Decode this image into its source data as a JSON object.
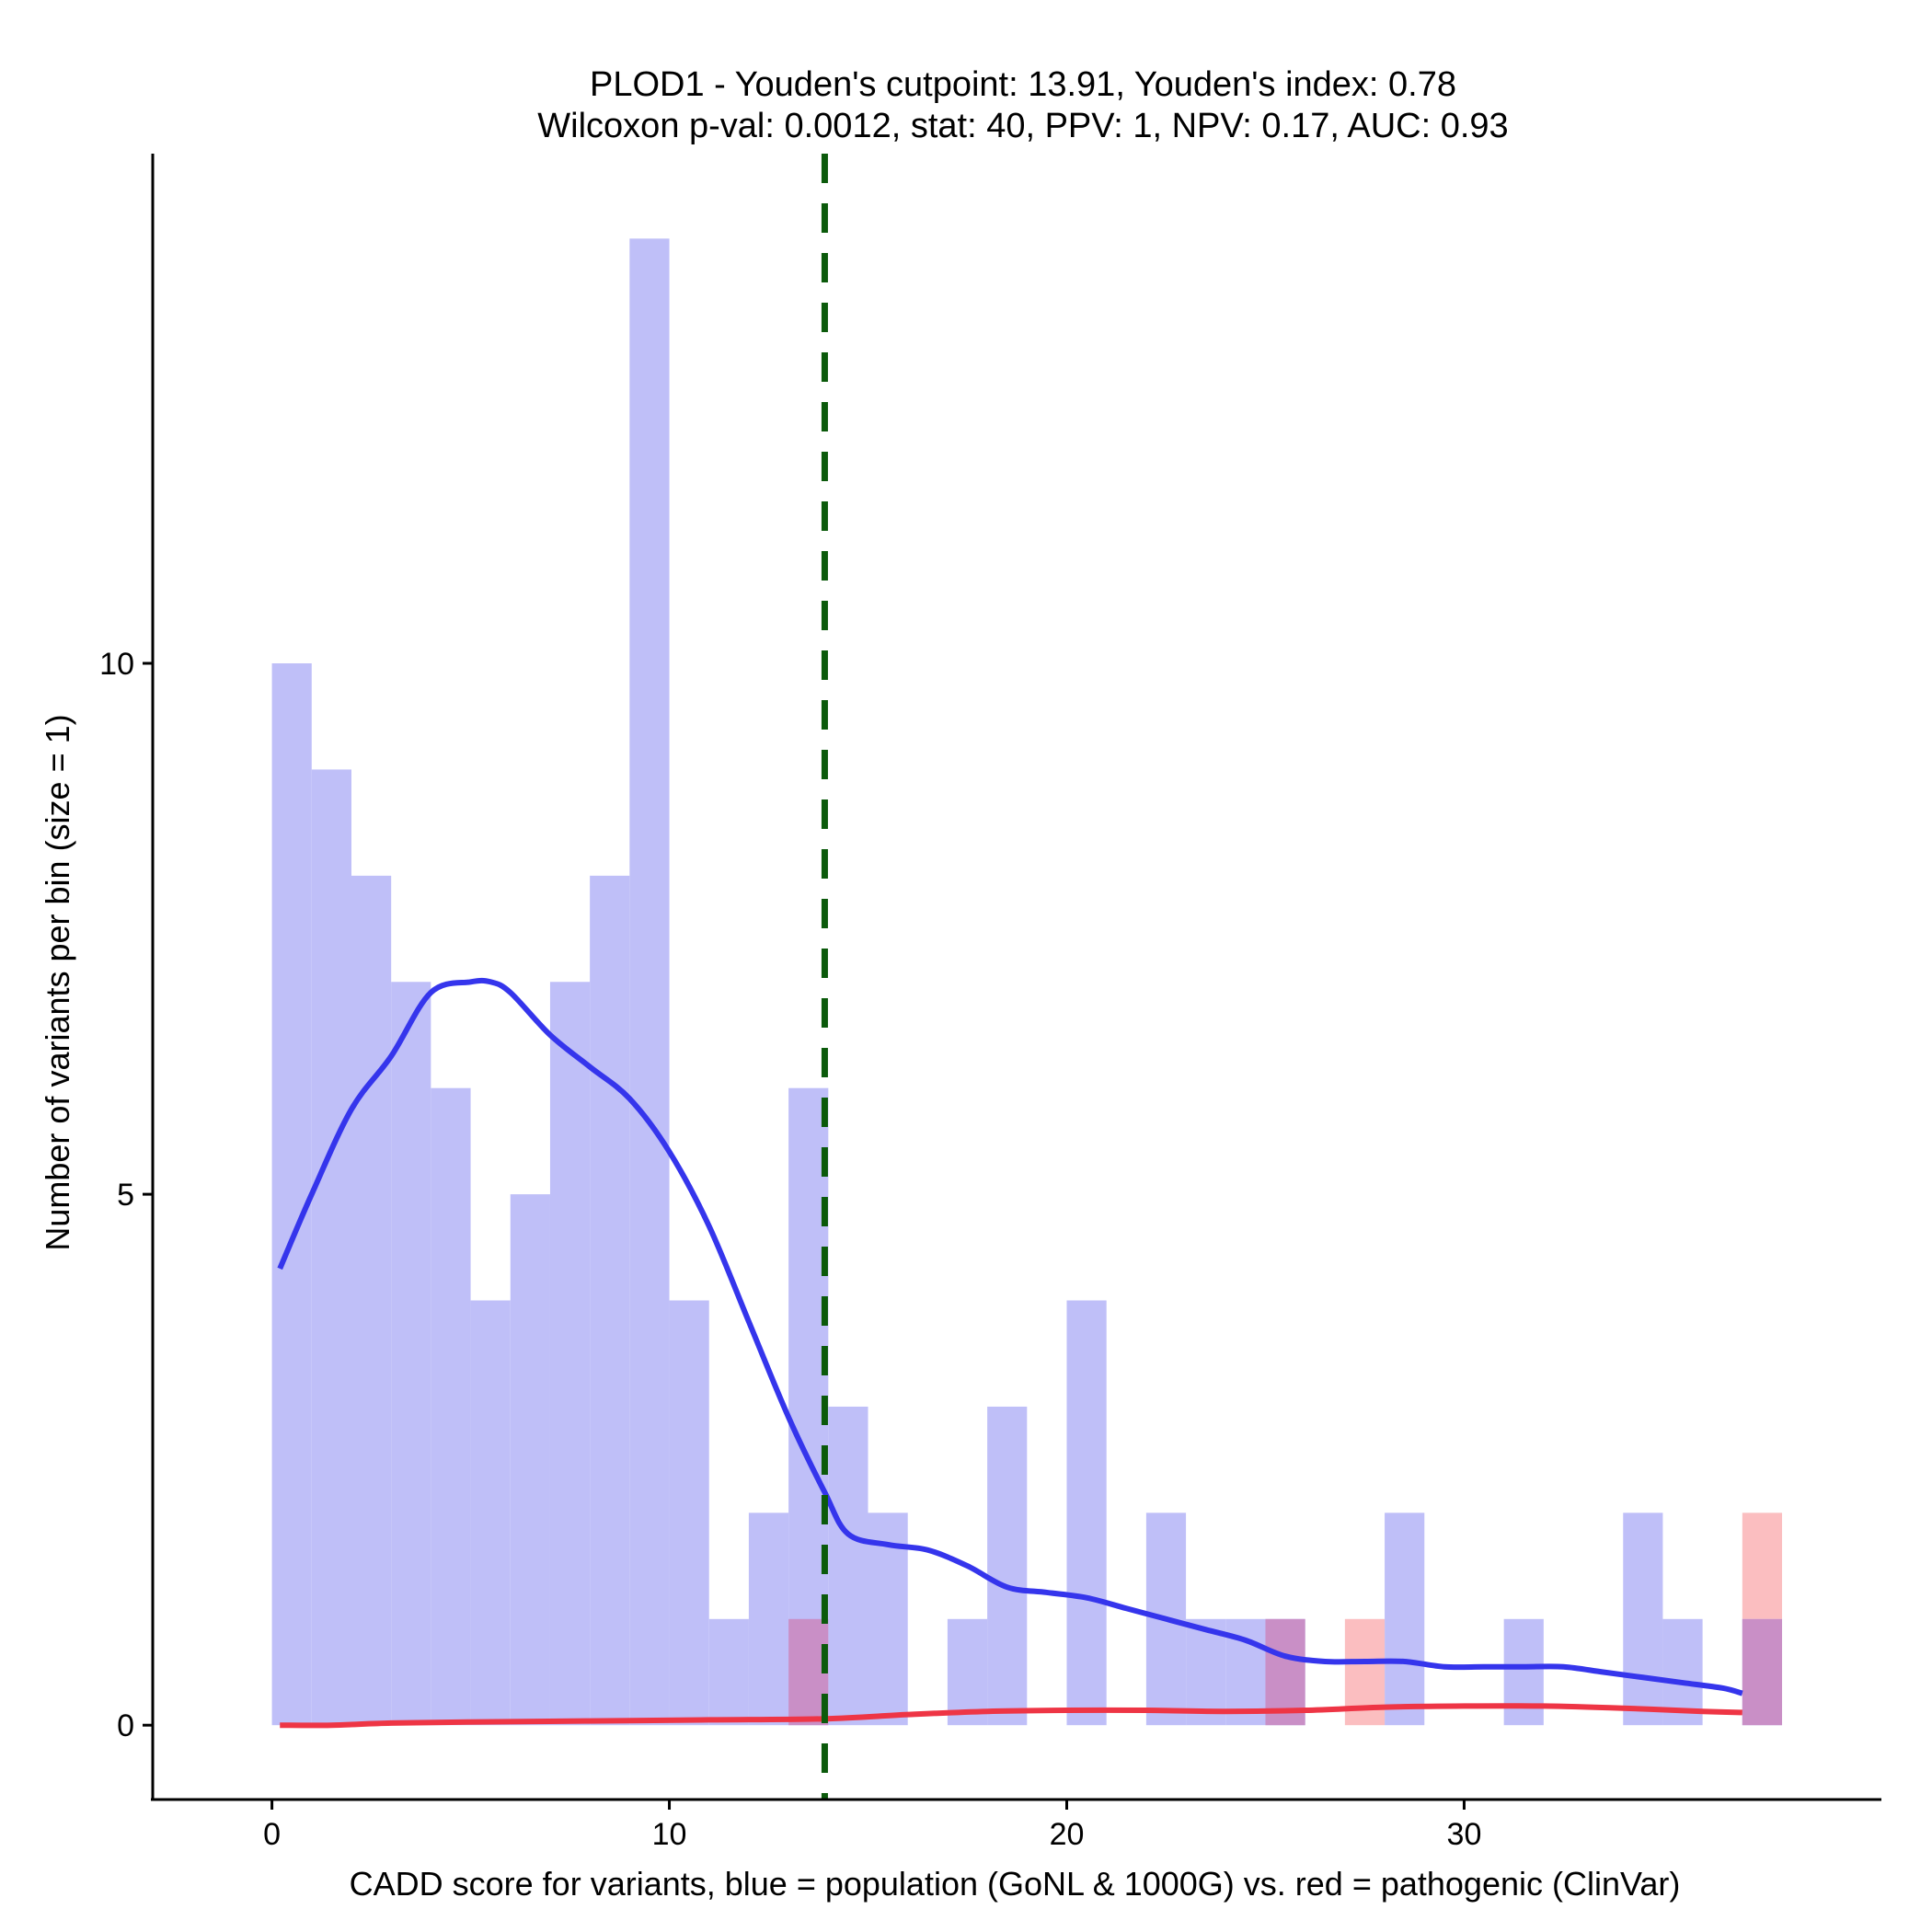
{
  "chart_data": {
    "type": "histogram",
    "title": "PLOD1 - Youden's cutpoint: 13.91, Youden's index: 0.78",
    "subtitle": "Wilcoxon p-val: 0.0012, stat: 40, PPV: 1, NPV: 0.17, AUC: 0.93",
    "xlabel": "CADD score for variants, blue = population (GoNL & 1000G) vs. red = pathogenic (ClinVar)",
    "ylabel": "Number of variants per bin (size = 1)",
    "xlim": [
      -3,
      40.5
    ],
    "ylim": [
      -0.7,
      14.8
    ],
    "x_ticks": [
      0,
      10,
      20,
      30
    ],
    "x_tick_labels": [
      "0",
      "10",
      "20",
      "30"
    ],
    "y_ticks": [
      0,
      5,
      10
    ],
    "y_tick_labels": [
      "0",
      "5",
      "10"
    ],
    "bin_size": 1,
    "cutpoint": 13.91,
    "colors": {
      "population_bar": "#bfbff8",
      "pathogenic_bar": "#fbbec0",
      "overlap_bar": "#c98fc6",
      "population_line": "#3535ec",
      "pathogenic_line": "#ee3545",
      "cutpoint_line": "#0b5a0b"
    },
    "series": [
      {
        "name": "population (GoNL & 1000G)",
        "bins": [
          {
            "x": 0,
            "count": 10
          },
          {
            "x": 1,
            "count": 9
          },
          {
            "x": 2,
            "count": 8
          },
          {
            "x": 3,
            "count": 7
          },
          {
            "x": 4,
            "count": 6
          },
          {
            "x": 5,
            "count": 4
          },
          {
            "x": 6,
            "count": 5
          },
          {
            "x": 7,
            "count": 7
          },
          {
            "x": 8,
            "count": 8
          },
          {
            "x": 9,
            "count": 14
          },
          {
            "x": 10,
            "count": 4
          },
          {
            "x": 11,
            "count": 1
          },
          {
            "x": 12,
            "count": 2
          },
          {
            "x": 13,
            "count": 6
          },
          {
            "x": 14,
            "count": 3
          },
          {
            "x": 15,
            "count": 2
          },
          {
            "x": 17,
            "count": 1
          },
          {
            "x": 18,
            "count": 3
          },
          {
            "x": 20,
            "count": 4
          },
          {
            "x": 22,
            "count": 2
          },
          {
            "x": 23,
            "count": 1
          },
          {
            "x": 24,
            "count": 1
          },
          {
            "x": 25,
            "count": 1
          },
          {
            "x": 28,
            "count": 2
          },
          {
            "x": 31,
            "count": 1
          },
          {
            "x": 34,
            "count": 2
          },
          {
            "x": 35,
            "count": 1
          },
          {
            "x": 37,
            "count": 1
          }
        ]
      },
      {
        "name": "pathogenic (ClinVar)",
        "bins": [
          {
            "x": 13,
            "count": 1
          },
          {
            "x": 25,
            "count": 1
          },
          {
            "x": 27,
            "count": 1
          },
          {
            "x": 37,
            "count": 2
          }
        ]
      }
    ],
    "density_lines": [
      {
        "name": "population (GoNL & 1000G)",
        "x": [
          0.2,
          1,
          2,
          3,
          4,
          5,
          5.5,
          6,
          7,
          8,
          9,
          10,
          11,
          12,
          13,
          13.9,
          14.5,
          15.5,
          16.5,
          17.5,
          18.5,
          19.5,
          20.5,
          21.5,
          22.5,
          23.5,
          24.5,
          25.5,
          26.5,
          27.5,
          28.5,
          29.5,
          30.5,
          31.5,
          32.5,
          33.5,
          34.5,
          35.5,
          36.5,
          37
        ],
        "y": [
          4.3,
          5.0,
          5.8,
          6.3,
          6.9,
          7.0,
          7.0,
          6.9,
          6.5,
          6.2,
          5.9,
          5.4,
          4.7,
          3.8,
          2.9,
          2.2,
          1.8,
          1.7,
          1.65,
          1.5,
          1.3,
          1.25,
          1.2,
          1.1,
          1.0,
          0.9,
          0.8,
          0.65,
          0.6,
          0.6,
          0.6,
          0.55,
          0.55,
          0.55,
          0.55,
          0.5,
          0.45,
          0.4,
          0.35,
          0.3
        ]
      },
      {
        "name": "pathogenic (ClinVar)",
        "x": [
          0.2,
          1.5,
          3,
          5,
          8,
          11,
          13.9,
          16,
          18,
          20,
          22,
          24,
          26,
          28,
          30,
          32,
          34,
          36,
          37
        ],
        "y": [
          0.0,
          0.0,
          0.02,
          0.03,
          0.04,
          0.05,
          0.06,
          0.1,
          0.13,
          0.14,
          0.14,
          0.13,
          0.14,
          0.17,
          0.18,
          0.18,
          0.16,
          0.13,
          0.12
        ]
      }
    ]
  }
}
